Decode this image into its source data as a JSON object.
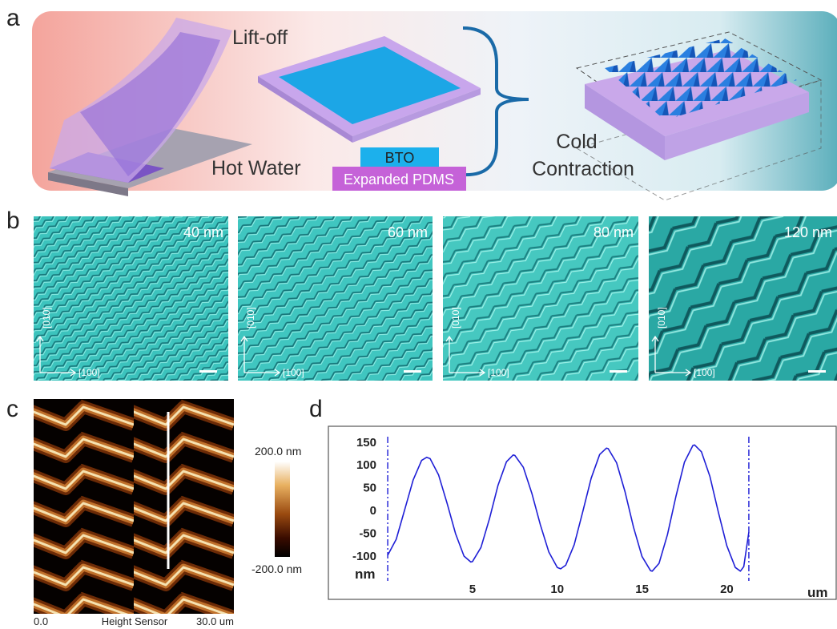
{
  "panel_labels": [
    "a",
    "b",
    "c",
    "d"
  ],
  "panel_a": {
    "lift_off": "Lift-off",
    "hot_water": "Hot Water",
    "bto": "BTO",
    "expanded_pdms": "Expanded PDMS",
    "cold_contraction": [
      "Cold",
      "Contraction"
    ]
  },
  "panel_b": {
    "images": [
      {
        "thickness": "40 nm"
      },
      {
        "thickness": "60 nm"
      },
      {
        "thickness": "80 nm"
      },
      {
        "thickness": "120 nm"
      }
    ],
    "axis_vertical": "[010]",
    "axis_horizontal": "[100]"
  },
  "panel_c": {
    "colorbar_max": "200.0 nm",
    "colorbar_min": "-200.0 nm",
    "x_start": "0.0",
    "channel": "Height Sensor",
    "x_end": "30.0 um"
  },
  "chart_data": {
    "type": "line",
    "x_label": "um",
    "y_label": "nm",
    "x": [
      0,
      0.5,
      1,
      1.5,
      2,
      2.3,
      2.5,
      3,
      3.5,
      4,
      4.5,
      4.9,
      5,
      5.5,
      6,
      6.5,
      7,
      7.4,
      7.5,
      8,
      8.5,
      9,
      9.5,
      10,
      10.2,
      10.5,
      11,
      11.5,
      12,
      12.5,
      12.9,
      13,
      13.5,
      14,
      14.5,
      15,
      15.5,
      15.6,
      16,
      16.5,
      17,
      17.5,
      18,
      18.1,
      18.5,
      19,
      19.5,
      20,
      20.5,
      20.8,
      21,
      21.3
    ],
    "series": [
      {
        "color": "#1f1fd6",
        "values": [
          -100,
          -65,
          0,
          65,
          108,
          115,
          112,
          76,
          14,
          -53,
          -102,
          -115,
          -114,
          -83,
          -20,
          53,
          105,
          120,
          119,
          93,
          36,
          -33,
          -93,
          -127,
          -130,
          -122,
          -77,
          -5,
          69,
          121,
          135,
          134,
          103,
          39,
          -39,
          -103,
          -134,
          -135,
          -118,
          -55,
          29,
          104,
          141,
          142,
          127,
          73,
          -5,
          -79,
          -127,
          -135,
          -125,
          -50
        ]
      }
    ],
    "xlim": [
      -3.5,
      26.5
    ],
    "ylim": [
      -197,
      183
    ],
    "xticks": [
      5,
      10,
      15,
      20
    ],
    "yticks": [
      -100,
      -50,
      0,
      50,
      100,
      150
    ]
  }
}
